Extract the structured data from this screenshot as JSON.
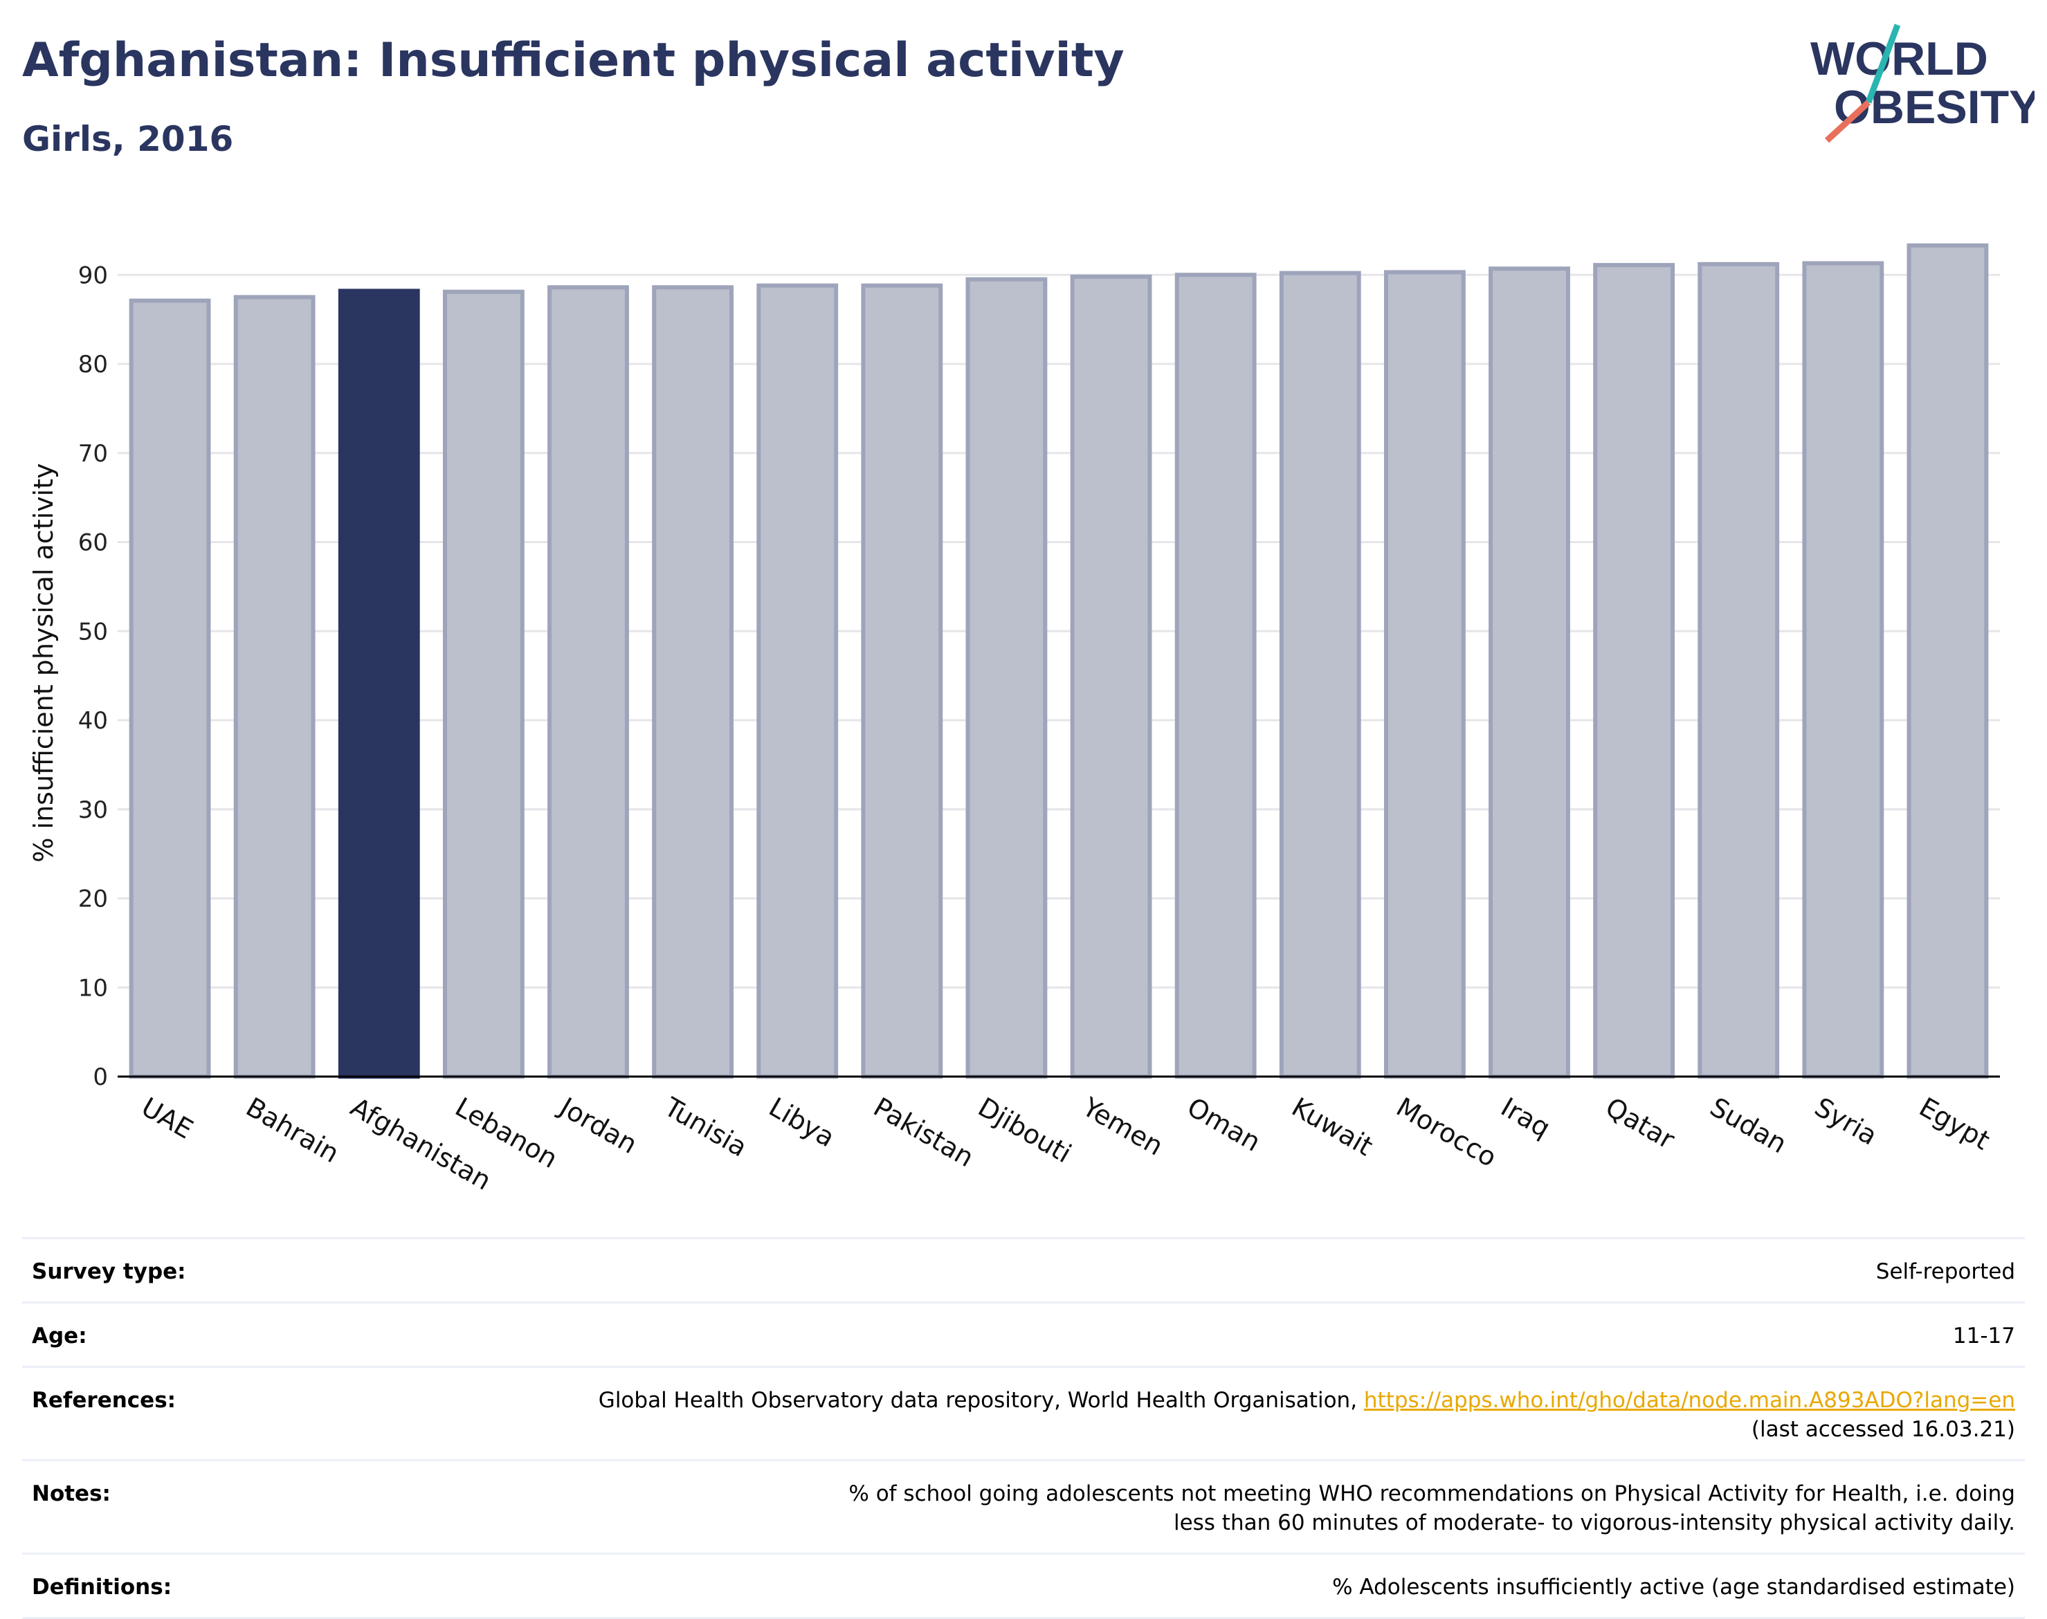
{
  "header": {
    "title": "Afghanistan: Insufficient physical activity",
    "subtitle": "Girls, 2016"
  },
  "logo": {
    "line1": "WORLD",
    "line2": "OBESITY",
    "colors": {
      "text": "#2a3560",
      "slash_teal": "#2bb5b0",
      "slash_coral": "#e8705a"
    }
  },
  "chart_data": {
    "type": "bar",
    "categories": [
      "UAE",
      "Bahrain",
      "Afghanistan",
      "Lebanon",
      "Jordan",
      "Tunisia",
      "Libya",
      "Pakistan",
      "Djibouti",
      "Yemen",
      "Oman",
      "Kuwait",
      "Morocco",
      "Iraq",
      "Qatar",
      "Sudan",
      "Syria",
      "Egypt"
    ],
    "values": [
      87.1,
      87.5,
      88.2,
      88.1,
      88.6,
      88.6,
      88.8,
      88.8,
      89.5,
      89.8,
      90.0,
      90.2,
      90.3,
      90.7,
      91.1,
      91.2,
      91.3,
      93.3
    ],
    "highlight": "Afghanistan",
    "ylabel": "% insufficient physical activity",
    "xlabel": "",
    "ylim": [
      0,
      96
    ],
    "yticks": [
      0,
      10,
      20,
      30,
      40,
      50,
      60,
      70,
      80,
      90
    ],
    "grid": true,
    "colors": {
      "highlight": "#2a3560",
      "other_fill": "#bcbfcc",
      "other_border": "#9ea4ba",
      "grid": "#e6e6ea",
      "axis": "#000000"
    }
  },
  "meta": {
    "survey_type": {
      "label": "Survey type:",
      "value": "Self-reported"
    },
    "age": {
      "label": "Age:",
      "value": "11-17"
    },
    "references": {
      "label": "References:",
      "text": "Global Health Observatory data repository, World Health Organisation, ",
      "link": "https://apps.who.int/gho/data/node.main.A893ADO?lang=en",
      "accessed": "(last accessed 16.03.21)"
    },
    "notes": {
      "label": "Notes:",
      "value": "% of school going adolescents not meeting WHO recommendations on Physical Activity for Health, i.e. doing less than 60 minutes of moderate- to vigorous-intensity physical activity daily."
    },
    "definitions": {
      "label": "Definitions:",
      "value": "% Adolescents insufficiently active (age standardised estimate)"
    }
  }
}
